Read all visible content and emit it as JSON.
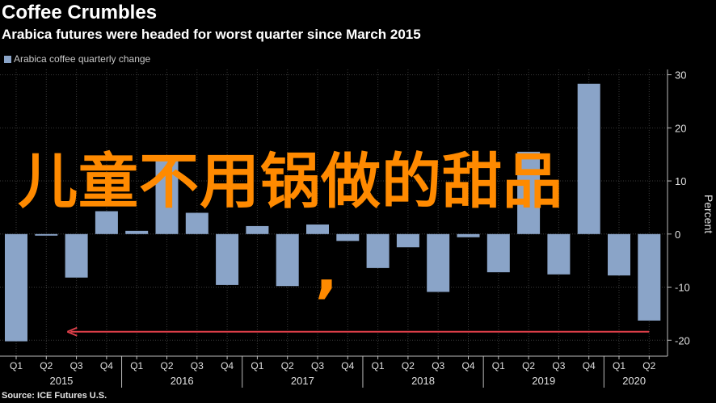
{
  "header": {
    "title": "Coffee Crumbles",
    "subtitle": "Arabica futures were headed for worst quarter since March 2015",
    "legend_label": "Arabica coffee quarterly change",
    "source": "Source: ICE Futures U.S."
  },
  "overlay": {
    "text": "儿童不用锅做的甜品",
    "comma": ","
  },
  "colors": {
    "background": "#000000",
    "bar": "#8aa4c8",
    "grid": "#3a3a3a",
    "arrow": "#e0404a",
    "overlay_text": "#ff8a00"
  },
  "chart_data": {
    "type": "bar",
    "categories": [
      "Q1",
      "Q2",
      "Q3",
      "Q4",
      "Q1",
      "Q2",
      "Q3",
      "Q4",
      "Q1",
      "Q2",
      "Q3",
      "Q4",
      "Q1",
      "Q2",
      "Q3",
      "Q4",
      "Q1",
      "Q2",
      "Q3",
      "Q4",
      "Q1",
      "Q2"
    ],
    "year_labels": [
      {
        "year": "2015",
        "start": 0,
        "end": 3
      },
      {
        "year": "2016",
        "start": 4,
        "end": 7
      },
      {
        "year": "2017",
        "start": 8,
        "end": 11
      },
      {
        "year": "2018",
        "start": 12,
        "end": 15
      },
      {
        "year": "2019",
        "start": 16,
        "end": 19
      },
      {
        "year": "2020",
        "start": 20,
        "end": 21
      }
    ],
    "series": [
      {
        "name": "Arabica coffee quarterly change",
        "values": [
          -20.2,
          -0.3,
          -8.2,
          4.3,
          0.6,
          14.2,
          4.0,
          -9.6,
          1.5,
          -9.8,
          1.8,
          -1.3,
          -6.4,
          -2.5,
          -10.9,
          -0.6,
          -7.2,
          15.5,
          -7.6,
          28.3,
          -7.8,
          -16.3
        ]
      }
    ],
    "ylabel": "Percent",
    "ylim": [
      -23,
      31
    ],
    "yticks": [
      -20,
      -10,
      0,
      10,
      20,
      30
    ],
    "grid": true,
    "legend": "top-left",
    "arrow": {
      "from_index": 21,
      "to_index": 1,
      "y": -18.4
    }
  }
}
